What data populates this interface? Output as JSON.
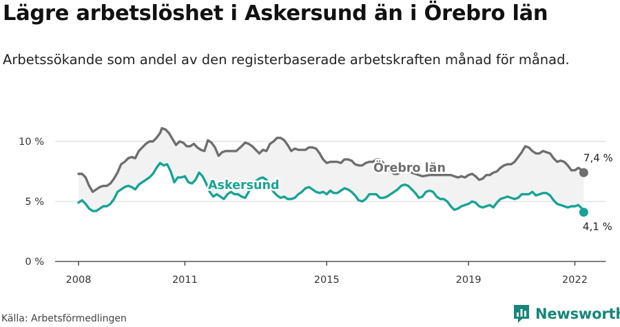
{
  "title": "Lägre arbetslöshet i Askersund än i Örebro län",
  "subtitle": "Arbetssökande som andel av den registerbaserade arbetskraften månad för månad.",
  "source": "Källa: Arbetsförmedlingen",
  "brand": {
    "name": "Newsworthy",
    "icon": "bar-chart-logo-icon"
  },
  "colors": {
    "askersund": "#17a394",
    "orebro": "#6e6e6e",
    "band": "#f2f2f2",
    "grid": "#dddddd"
  },
  "chart_data": {
    "type": "line",
    "title": "Lägre arbetslöshet i Askersund än i Örebro län",
    "xlabel": "",
    "ylabel": "",
    "xlim": [
      2008.0,
      2022.8
    ],
    "ylim": [
      0,
      10
    ],
    "y_ticks": [
      {
        "value": 0,
        "label": "0 %"
      },
      {
        "value": 5,
        "label": "5 %"
      },
      {
        "value": 10,
        "label": "10 %"
      }
    ],
    "x_ticks": [
      {
        "value": 2008,
        "label": "2008"
      },
      {
        "value": 2011,
        "label": "2011"
      },
      {
        "value": 2015,
        "label": "2015"
      },
      {
        "value": 2019,
        "label": "2019"
      },
      {
        "value": 2022,
        "label": "2022"
      }
    ],
    "grid": true,
    "series": [
      {
        "name": "Örebro län",
        "end_label": "7,4 %",
        "points": [
          [
            2008.0,
            7.3
          ],
          [
            2008.1,
            7.3
          ],
          [
            2008.2,
            7.0
          ],
          [
            2008.3,
            6.3
          ],
          [
            2008.4,
            5.8
          ],
          [
            2008.5,
            6.0
          ],
          [
            2008.6,
            6.2
          ],
          [
            2008.7,
            6.3
          ],
          [
            2008.8,
            6.3
          ],
          [
            2008.9,
            6.5
          ],
          [
            2009.0,
            6.9
          ],
          [
            2009.1,
            7.4
          ],
          [
            2009.2,
            8.1
          ],
          [
            2009.3,
            8.3
          ],
          [
            2009.4,
            8.6
          ],
          [
            2009.5,
            8.7
          ],
          [
            2009.6,
            8.6
          ],
          [
            2009.7,
            9.2
          ],
          [
            2009.8,
            9.5
          ],
          [
            2009.9,
            9.8
          ],
          [
            2010.0,
            10.0
          ],
          [
            2010.1,
            10.0
          ],
          [
            2010.2,
            10.3
          ],
          [
            2010.3,
            10.7
          ],
          [
            2010.35,
            11.1
          ],
          [
            2010.45,
            11.0
          ],
          [
            2010.55,
            10.7
          ],
          [
            2010.65,
            10.2
          ],
          [
            2010.75,
            9.7
          ],
          [
            2010.85,
            10.0
          ],
          [
            2010.95,
            9.9
          ],
          [
            2011.05,
            9.6
          ],
          [
            2011.15,
            9.6
          ],
          [
            2011.25,
            9.8
          ],
          [
            2011.35,
            9.5
          ],
          [
            2011.45,
            9.3
          ],
          [
            2011.55,
            9.2
          ],
          [
            2011.65,
            10.1
          ],
          [
            2011.75,
            9.9
          ],
          [
            2011.85,
            9.5
          ],
          [
            2011.95,
            8.8
          ],
          [
            2012.05,
            9.1
          ],
          [
            2012.15,
            9.2
          ],
          [
            2012.3,
            9.2
          ],
          [
            2012.45,
            9.2
          ],
          [
            2012.6,
            9.6
          ],
          [
            2012.7,
            9.9
          ],
          [
            2012.8,
            9.8
          ],
          [
            2012.9,
            9.6
          ],
          [
            2013.0,
            9.3
          ],
          [
            2013.1,
            9.0
          ],
          [
            2013.2,
            9.3
          ],
          [
            2013.3,
            9.2
          ],
          [
            2013.4,
            9.8
          ],
          [
            2013.5,
            10.0
          ],
          [
            2013.6,
            10.3
          ],
          [
            2013.7,
            10.3
          ],
          [
            2013.8,
            10.1
          ],
          [
            2013.9,
            9.7
          ],
          [
            2014.0,
            9.2
          ],
          [
            2014.1,
            9.4
          ],
          [
            2014.2,
            9.3
          ],
          [
            2014.3,
            9.3
          ],
          [
            2014.4,
            9.3
          ],
          [
            2014.5,
            9.5
          ],
          [
            2014.6,
            9.5
          ],
          [
            2014.7,
            9.4
          ],
          [
            2014.8,
            9.0
          ],
          [
            2014.9,
            8.5
          ],
          [
            2015.0,
            8.2
          ],
          [
            2015.1,
            8.3
          ],
          [
            2015.2,
            8.3
          ],
          [
            2015.3,
            8.3
          ],
          [
            2015.4,
            8.2
          ],
          [
            2015.5,
            8.5
          ],
          [
            2015.6,
            8.5
          ],
          [
            2015.7,
            8.4
          ],
          [
            2015.8,
            8.1
          ],
          [
            2015.9,
            8.0
          ],
          [
            2016.0,
            8.0
          ],
          [
            2016.1,
            8.2
          ],
          [
            2016.2,
            8.3
          ],
          [
            2016.3,
            8.3
          ],
          [
            2016.4,
            8.5
          ],
          [
            2016.5,
            8.5
          ],
          [
            2016.6,
            8.2
          ],
          [
            2016.7,
            7.7
          ],
          [
            2016.8,
            7.5
          ],
          [
            2016.9,
            7.3
          ],
          [
            2017.0,
            7.3
          ],
          [
            2017.1,
            7.5
          ],
          [
            2017.2,
            7.7
          ],
          [
            2017.3,
            7.5
          ],
          [
            2017.5,
            7.3
          ],
          [
            2017.7,
            7.1
          ],
          [
            2017.9,
            7.2
          ],
          [
            2018.1,
            7.2
          ],
          [
            2018.3,
            7.2
          ],
          [
            2018.5,
            7.2
          ],
          [
            2018.6,
            7.1
          ],
          [
            2018.7,
            7.0
          ],
          [
            2018.8,
            7.1
          ],
          [
            2018.9,
            7.0
          ],
          [
            2019.0,
            7.2
          ],
          [
            2019.1,
            7.3
          ],
          [
            2019.2,
            7.1
          ],
          [
            2019.3,
            6.8
          ],
          [
            2019.4,
            6.9
          ],
          [
            2019.5,
            7.2
          ],
          [
            2019.6,
            7.2
          ],
          [
            2019.7,
            7.4
          ],
          [
            2019.8,
            7.5
          ],
          [
            2019.9,
            7.8
          ],
          [
            2020.0,
            8.0
          ],
          [
            2020.1,
            8.1
          ],
          [
            2020.2,
            8.1
          ],
          [
            2020.3,
            8.3
          ],
          [
            2020.4,
            8.7
          ],
          [
            2020.5,
            9.1
          ],
          [
            2020.6,
            9.6
          ],
          [
            2020.7,
            9.5
          ],
          [
            2020.8,
            9.2
          ],
          [
            2020.9,
            9.0
          ],
          [
            2021.0,
            9.0
          ],
          [
            2021.1,
            9.2
          ],
          [
            2021.2,
            9.1
          ],
          [
            2021.3,
            9.0
          ],
          [
            2021.4,
            8.6
          ],
          [
            2021.5,
            8.3
          ],
          [
            2021.6,
            8.4
          ],
          [
            2021.7,
            8.3
          ],
          [
            2021.8,
            8.0
          ],
          [
            2021.9,
            7.6
          ],
          [
            2022.0,
            7.6
          ],
          [
            2022.1,
            7.8
          ],
          [
            2022.2,
            7.6
          ],
          [
            2022.25,
            7.4
          ]
        ]
      },
      {
        "name": "Askersund",
        "end_label": "4,1 %",
        "points": [
          [
            2008.0,
            4.9
          ],
          [
            2008.1,
            5.1
          ],
          [
            2008.2,
            4.8
          ],
          [
            2008.3,
            4.4
          ],
          [
            2008.4,
            4.2
          ],
          [
            2008.5,
            4.2
          ],
          [
            2008.6,
            4.4
          ],
          [
            2008.7,
            4.6
          ],
          [
            2008.8,
            4.6
          ],
          [
            2008.9,
            4.8
          ],
          [
            2009.0,
            5.2
          ],
          [
            2009.1,
            5.8
          ],
          [
            2009.2,
            6.0
          ],
          [
            2009.3,
            6.2
          ],
          [
            2009.4,
            6.3
          ],
          [
            2009.5,
            6.2
          ],
          [
            2009.6,
            6.0
          ],
          [
            2009.7,
            6.4
          ],
          [
            2009.8,
            6.6
          ],
          [
            2009.9,
            6.8
          ],
          [
            2010.0,
            7.0
          ],
          [
            2010.1,
            7.3
          ],
          [
            2010.2,
            7.8
          ],
          [
            2010.3,
            8.2
          ],
          [
            2010.4,
            8.0
          ],
          [
            2010.5,
            8.1
          ],
          [
            2010.6,
            7.5
          ],
          [
            2010.7,
            6.6
          ],
          [
            2010.8,
            7.0
          ],
          [
            2010.9,
            7.0
          ],
          [
            2011.0,
            7.1
          ],
          [
            2011.1,
            6.6
          ],
          [
            2011.2,
            6.5
          ],
          [
            2011.3,
            6.8
          ],
          [
            2011.4,
            7.4
          ],
          [
            2011.5,
            7.1
          ],
          [
            2011.6,
            6.5
          ],
          [
            2011.7,
            5.8
          ],
          [
            2011.8,
            5.4
          ],
          [
            2011.9,
            5.6
          ],
          [
            2012.0,
            5.4
          ],
          [
            2012.1,
            5.2
          ],
          [
            2012.2,
            5.6
          ],
          [
            2012.3,
            5.8
          ],
          [
            2012.4,
            5.6
          ],
          [
            2012.5,
            5.6
          ],
          [
            2012.6,
            5.4
          ],
          [
            2012.7,
            5.3
          ],
          [
            2012.8,
            5.8
          ],
          [
            2012.9,
            6.3
          ],
          [
            2013.0,
            6.7
          ],
          [
            2013.1,
            6.9
          ],
          [
            2013.2,
            7.0
          ],
          [
            2013.3,
            6.8
          ],
          [
            2013.4,
            6.3
          ],
          [
            2013.5,
            5.8
          ],
          [
            2013.6,
            5.5
          ],
          [
            2013.7,
            5.3
          ],
          [
            2013.8,
            5.4
          ],
          [
            2013.9,
            5.2
          ],
          [
            2014.0,
            5.2
          ],
          [
            2014.1,
            5.3
          ],
          [
            2014.2,
            5.6
          ],
          [
            2014.3,
            5.8
          ],
          [
            2014.4,
            6.1
          ],
          [
            2014.5,
            6.2
          ],
          [
            2014.6,
            6.0
          ],
          [
            2014.7,
            5.8
          ],
          [
            2014.8,
            5.7
          ],
          [
            2014.9,
            5.8
          ],
          [
            2015.0,
            5.6
          ],
          [
            2015.1,
            5.9
          ],
          [
            2015.2,
            5.7
          ],
          [
            2015.3,
            5.7
          ],
          [
            2015.4,
            5.9
          ],
          [
            2015.5,
            6.1
          ],
          [
            2015.6,
            6.0
          ],
          [
            2015.7,
            5.8
          ],
          [
            2015.8,
            5.5
          ],
          [
            2015.9,
            5.1
          ],
          [
            2016.0,
            5.0
          ],
          [
            2016.1,
            5.2
          ],
          [
            2016.2,
            5.6
          ],
          [
            2016.3,
            5.6
          ],
          [
            2016.4,
            5.6
          ],
          [
            2016.5,
            5.3
          ],
          [
            2016.6,
            5.3
          ],
          [
            2016.7,
            5.4
          ],
          [
            2016.8,
            5.6
          ],
          [
            2016.9,
            5.8
          ],
          [
            2017.0,
            6.0
          ],
          [
            2017.1,
            6.3
          ],
          [
            2017.2,
            6.4
          ],
          [
            2017.3,
            6.3
          ],
          [
            2017.4,
            6.0
          ],
          [
            2017.5,
            5.7
          ],
          [
            2017.6,
            5.3
          ],
          [
            2017.7,
            5.4
          ],
          [
            2017.8,
            5.8
          ],
          [
            2017.9,
            5.9
          ],
          [
            2018.0,
            5.8
          ],
          [
            2018.1,
            5.4
          ],
          [
            2018.2,
            5.2
          ],
          [
            2018.3,
            5.2
          ],
          [
            2018.4,
            5.0
          ],
          [
            2018.5,
            4.6
          ],
          [
            2018.6,
            4.3
          ],
          [
            2018.7,
            4.4
          ],
          [
            2018.8,
            4.6
          ],
          [
            2018.9,
            4.7
          ],
          [
            2019.0,
            4.8
          ],
          [
            2019.1,
            5.0
          ],
          [
            2019.2,
            4.9
          ],
          [
            2019.3,
            4.6
          ],
          [
            2019.4,
            4.5
          ],
          [
            2019.5,
            4.6
          ],
          [
            2019.6,
            4.7
          ],
          [
            2019.7,
            4.5
          ],
          [
            2019.8,
            4.9
          ],
          [
            2019.9,
            5.2
          ],
          [
            2020.0,
            5.3
          ],
          [
            2020.1,
            5.4
          ],
          [
            2020.2,
            5.3
          ],
          [
            2020.3,
            5.2
          ],
          [
            2020.4,
            5.3
          ],
          [
            2020.5,
            5.6
          ],
          [
            2020.6,
            5.6
          ],
          [
            2020.7,
            5.6
          ],
          [
            2020.8,
            5.8
          ],
          [
            2020.9,
            5.5
          ],
          [
            2021.0,
            5.6
          ],
          [
            2021.1,
            5.7
          ],
          [
            2021.2,
            5.7
          ],
          [
            2021.3,
            5.5
          ],
          [
            2021.4,
            5.1
          ],
          [
            2021.5,
            4.8
          ],
          [
            2021.6,
            4.7
          ],
          [
            2021.7,
            4.6
          ],
          [
            2021.8,
            4.5
          ],
          [
            2021.9,
            4.6
          ],
          [
            2022.0,
            4.6
          ],
          [
            2022.1,
            4.7
          ],
          [
            2022.2,
            4.4
          ],
          [
            2022.25,
            4.1
          ]
        ]
      }
    ]
  }
}
